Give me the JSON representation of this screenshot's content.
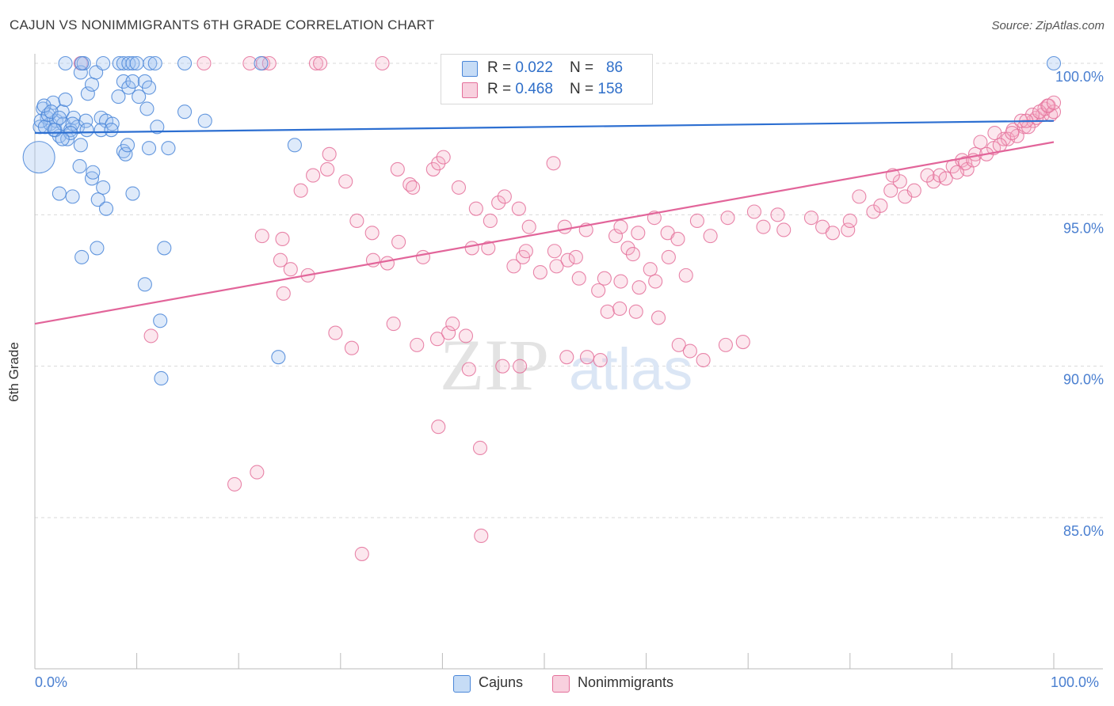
{
  "title": "CAJUN VS NONIMMIGRANTS 6TH GRADE CORRELATION CHART",
  "source": "Source: ZipAtlas.com",
  "watermark": {
    "zip": "ZIP",
    "atlas": "atlas"
  },
  "colors": {
    "cajun": "#4a86d8",
    "cajun_fill": "rgba(160,196,240,0.35)",
    "nonimmigrants": "#e4709a",
    "nonimmigrants_fill": "rgba(244,176,200,0.30)",
    "axis_text": "#4a7fd0",
    "grid": "#d9d9d9"
  },
  "stats": {
    "cajun": {
      "r_label": "R = ",
      "r": "0.022",
      "n_label": "N = ",
      "n": "86"
    },
    "nonimmigrants": {
      "r_label": "R = ",
      "r": "0.468",
      "n_label": "N = ",
      "n": "158"
    }
  },
  "legend": {
    "cajun": "Cajuns",
    "nonimmigrants": "Nonimmigrants"
  },
  "chart_data": {
    "type": "scatter",
    "title": "CAJUN VS NONIMMIGRANTS 6TH GRADE CORRELATION CHART",
    "xlabel": "",
    "ylabel": "6th Grade",
    "x_tick_labels": [
      "0.0%",
      "100.0%"
    ],
    "y_ticks": [
      85,
      90,
      95,
      100
    ],
    "y_tick_labels": [
      "85.0%",
      "90.0%",
      "95.0%",
      "100.0%"
    ],
    "xlim": [
      0,
      100
    ],
    "ylim": [
      80.1,
      100.5
    ],
    "grid": "horizontal dashed",
    "legend_position": "bottom-center",
    "series": [
      {
        "name": "Cajuns",
        "r": 0.022,
        "n": 86,
        "trend": {
          "x": [
            0,
            100
          ],
          "y": [
            97.7,
            98.1
          ]
        },
        "points": [
          [
            0.5,
            97.9
          ],
          [
            0.8,
            98.5
          ],
          [
            1.2,
            98.2
          ],
          [
            1.5,
            98.0
          ],
          [
            1.8,
            98.7
          ],
          [
            2.1,
            98.1
          ],
          [
            2.4,
            97.6
          ],
          [
            2.7,
            98.4
          ],
          [
            3.0,
            98.8
          ],
          [
            3.2,
            97.5
          ],
          [
            0.6,
            98.1
          ],
          [
            1.0,
            97.9
          ],
          [
            1.3,
            98.3
          ],
          [
            2.0,
            97.8
          ],
          [
            2.8,
            98.0
          ],
          [
            3.5,
            97.8
          ],
          [
            3.8,
            98.2
          ],
          [
            4.2,
            97.9
          ],
          [
            0.9,
            98.6
          ],
          [
            1.6,
            98.4
          ],
          [
            4.5,
            99.7
          ],
          [
            4.8,
            100.0
          ],
          [
            5.2,
            99.0
          ],
          [
            5.6,
            99.3
          ],
          [
            6.0,
            99.7
          ],
          [
            6.5,
            98.2
          ],
          [
            7.0,
            98.1
          ],
          [
            7.6,
            98.0
          ],
          [
            8.2,
            98.9
          ],
          [
            8.7,
            99.4
          ],
          [
            9.2,
            99.2
          ],
          [
            9.6,
            99.4
          ],
          [
            10.2,
            98.9
          ],
          [
            10.8,
            99.4
          ],
          [
            11.2,
            99.2
          ],
          [
            3.0,
            100.0
          ],
          [
            4.6,
            100.0
          ],
          [
            6.7,
            100.0
          ],
          [
            8.3,
            100.0
          ],
          [
            8.7,
            100.0
          ],
          [
            9.2,
            100.0
          ],
          [
            9.6,
            100.0
          ],
          [
            10.0,
            100.0
          ],
          [
            11.3,
            100.0
          ],
          [
            11.8,
            100.0
          ],
          [
            14.7,
            100.0
          ],
          [
            22.2,
            100.0
          ],
          [
            100.0,
            100.0
          ],
          [
            11.0,
            98.5
          ],
          [
            12.0,
            97.9
          ],
          [
            14.7,
            98.4
          ],
          [
            16.7,
            98.1
          ],
          [
            4.5,
            97.3
          ],
          [
            8.7,
            97.1
          ],
          [
            8.9,
            97.0
          ],
          [
            9.1,
            97.3
          ],
          [
            11.2,
            97.2
          ],
          [
            13.1,
            97.2
          ],
          [
            25.5,
            97.3
          ],
          [
            4.4,
            96.6
          ],
          [
            5.6,
            96.2
          ],
          [
            5.7,
            96.4
          ],
          [
            6.2,
            95.5
          ],
          [
            6.7,
            95.9
          ],
          [
            7.0,
            95.2
          ],
          [
            9.6,
            95.7
          ],
          [
            2.4,
            95.7
          ],
          [
            3.7,
            95.6
          ],
          [
            4.6,
            93.6
          ],
          [
            6.1,
            93.9
          ],
          [
            12.7,
            93.9
          ],
          [
            10.8,
            92.7
          ],
          [
            12.3,
            91.5
          ],
          [
            12.4,
            89.6
          ],
          [
            23.9,
            90.3
          ],
          [
            1.9,
            97.8
          ],
          [
            2.4,
            98.2
          ],
          [
            5.0,
            98.1
          ],
          [
            3.7,
            98.0
          ],
          [
            5.1,
            97.8
          ],
          [
            6.5,
            97.8
          ],
          [
            7.5,
            97.8
          ],
          [
            0.4,
            96.9
          ],
          [
            3.5,
            97.7
          ],
          [
            2.7,
            97.5
          ]
        ]
      },
      {
        "name": "Nonimmigrants",
        "r": 0.468,
        "n": 158,
        "trend": {
          "x": [
            0,
            100
          ],
          "y": [
            91.4,
            97.4
          ]
        },
        "points": [
          [
            4.5,
            100.0
          ],
          [
            16.6,
            100.0
          ],
          [
            21.1,
            100.0
          ],
          [
            22.4,
            100.0
          ],
          [
            23.0,
            100.0
          ],
          [
            27.6,
            100.0
          ],
          [
            28.0,
            100.0
          ],
          [
            34.1,
            100.0
          ],
          [
            28.9,
            97.0
          ],
          [
            27.3,
            96.3
          ],
          [
            28.7,
            96.5
          ],
          [
            30.5,
            96.1
          ],
          [
            26.1,
            95.8
          ],
          [
            35.6,
            96.5
          ],
          [
            36.8,
            96.0
          ],
          [
            37.1,
            95.9
          ],
          [
            39.1,
            96.5
          ],
          [
            39.6,
            96.7
          ],
          [
            40.1,
            96.9
          ],
          [
            50.9,
            96.7
          ],
          [
            41.6,
            95.9
          ],
          [
            43.3,
            95.2
          ],
          [
            45.5,
            95.4
          ],
          [
            46.1,
            95.6
          ],
          [
            47.5,
            95.2
          ],
          [
            44.7,
            94.8
          ],
          [
            31.6,
            94.8
          ],
          [
            33.1,
            94.4
          ],
          [
            35.7,
            94.1
          ],
          [
            38.1,
            93.6
          ],
          [
            42.9,
            93.9
          ],
          [
            44.5,
            93.9
          ],
          [
            48.5,
            94.6
          ],
          [
            52.0,
            94.6
          ],
          [
            22.3,
            94.3
          ],
          [
            24.3,
            94.2
          ],
          [
            24.1,
            93.5
          ],
          [
            25.1,
            93.2
          ],
          [
            26.8,
            93.0
          ],
          [
            24.4,
            92.4
          ],
          [
            33.2,
            93.5
          ],
          [
            34.6,
            93.4
          ],
          [
            47.0,
            93.3
          ],
          [
            47.9,
            93.6
          ],
          [
            48.2,
            93.8
          ],
          [
            49.6,
            93.1
          ],
          [
            51.0,
            93.8
          ],
          [
            52.3,
            93.5
          ],
          [
            51.2,
            93.3
          ],
          [
            53.1,
            93.6
          ],
          [
            54.1,
            94.5
          ],
          [
            57.0,
            94.3
          ],
          [
            57.5,
            94.6
          ],
          [
            58.2,
            93.9
          ],
          [
            59.2,
            94.4
          ],
          [
            60.8,
            94.9
          ],
          [
            62.1,
            94.4
          ],
          [
            63.1,
            94.2
          ],
          [
            65.0,
            94.8
          ],
          [
            66.3,
            94.3
          ],
          [
            68.0,
            94.9
          ],
          [
            70.6,
            95.1
          ],
          [
            71.5,
            94.6
          ],
          [
            72.9,
            95.0
          ],
          [
            73.5,
            94.5
          ],
          [
            76.2,
            94.9
          ],
          [
            77.3,
            94.6
          ],
          [
            78.3,
            94.4
          ],
          [
            79.8,
            94.5
          ],
          [
            80.0,
            94.8
          ],
          [
            80.9,
            95.6
          ],
          [
            82.3,
            95.1
          ],
          [
            83.0,
            95.3
          ],
          [
            84.0,
            95.8
          ],
          [
            85.4,
            95.6
          ],
          [
            84.9,
            96.1
          ],
          [
            86.3,
            95.8
          ],
          [
            88.2,
            96.1
          ],
          [
            88.8,
            96.3
          ],
          [
            90.1,
            96.6
          ],
          [
            91.0,
            96.8
          ],
          [
            91.5,
            96.5
          ],
          [
            92.3,
            97.0
          ],
          [
            92.8,
            97.4
          ],
          [
            94.1,
            97.2
          ],
          [
            95.1,
            97.5
          ],
          [
            96.0,
            97.8
          ],
          [
            97.1,
            97.9
          ],
          [
            98.0,
            98.1
          ],
          [
            98.9,
            98.3
          ],
          [
            99.7,
            98.3
          ],
          [
            94.2,
            97.7
          ],
          [
            95.5,
            97.5
          ],
          [
            96.4,
            97.6
          ],
          [
            97.5,
            97.9
          ],
          [
            98.3,
            98.2
          ],
          [
            99.1,
            98.5
          ],
          [
            99.5,
            98.6
          ],
          [
            100.0,
            98.4
          ],
          [
            96.8,
            98.1
          ],
          [
            97.9,
            98.3
          ],
          [
            98.6,
            98.4
          ],
          [
            99.4,
            98.6
          ],
          [
            100.0,
            98.7
          ],
          [
            87.6,
            96.3
          ],
          [
            89.4,
            96.2
          ],
          [
            91.3,
            96.7
          ],
          [
            93.4,
            97.0
          ],
          [
            94.7,
            97.3
          ],
          [
            95.9,
            97.7
          ],
          [
            97.3,
            98.1
          ],
          [
            84.2,
            96.3
          ],
          [
            90.5,
            96.4
          ],
          [
            92.1,
            96.8
          ],
          [
            58.7,
            93.7
          ],
          [
            60.4,
            93.2
          ],
          [
            62.2,
            93.6
          ],
          [
            63.9,
            93.0
          ],
          [
            55.9,
            92.9
          ],
          [
            57.5,
            92.8
          ],
          [
            59.3,
            92.6
          ],
          [
            60.9,
            92.8
          ],
          [
            53.4,
            92.9
          ],
          [
            55.3,
            92.5
          ],
          [
            56.2,
            91.8
          ],
          [
            57.4,
            91.9
          ],
          [
            59.0,
            91.8
          ],
          [
            61.2,
            91.6
          ],
          [
            54.2,
            90.3
          ],
          [
            55.5,
            90.2
          ],
          [
            63.2,
            90.7
          ],
          [
            64.3,
            90.5
          ],
          [
            65.6,
            90.2
          ],
          [
            67.8,
            90.7
          ],
          [
            69.5,
            90.8
          ],
          [
            37.5,
            90.7
          ],
          [
            39.5,
            90.9
          ],
          [
            40.6,
            91.1
          ],
          [
            42.3,
            91.0
          ],
          [
            45.9,
            90.0
          ],
          [
            47.6,
            90.0
          ],
          [
            52.2,
            90.3
          ],
          [
            11.4,
            91.0
          ],
          [
            29.5,
            91.1
          ],
          [
            31.1,
            90.6
          ],
          [
            35.2,
            91.4
          ],
          [
            41.0,
            91.4
          ],
          [
            42.6,
            89.9
          ],
          [
            39.6,
            88.0
          ],
          [
            43.7,
            87.3
          ],
          [
            19.6,
            86.1
          ],
          [
            21.8,
            86.5
          ],
          [
            32.1,
            83.8
          ],
          [
            43.8,
            84.4
          ]
        ]
      }
    ]
  }
}
